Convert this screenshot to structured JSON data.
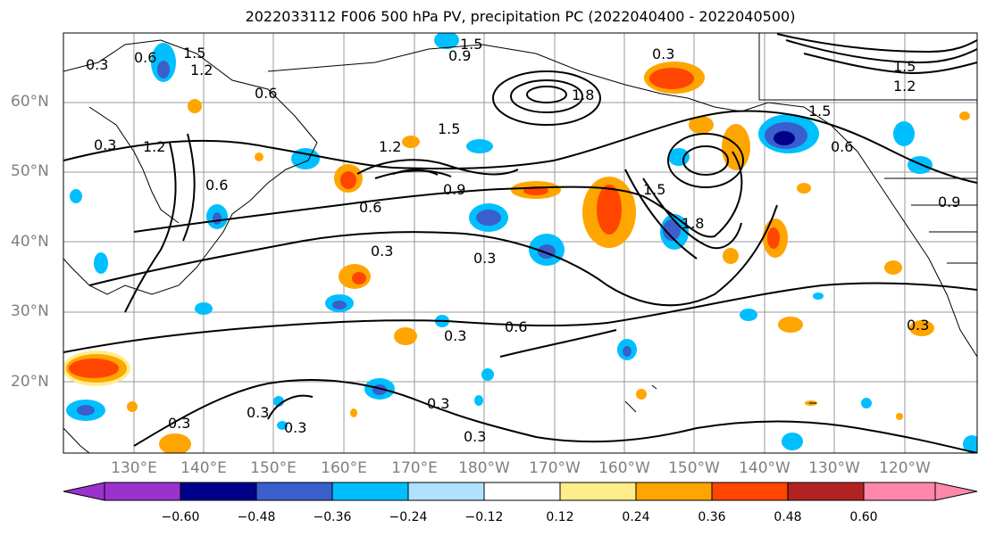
{
  "title": "2022033112 F006 500 hPa PV, precipitation PC (2022040400 - 2022040500)",
  "latitude_labels": [
    "60°N",
    "50°N",
    "40°N",
    "30°N",
    "20°N"
  ],
  "longitude_labels": [
    "130°E",
    "140°E",
    "150°E",
    "160°E",
    "170°E",
    "180°W",
    "170°W",
    "160°W",
    "150°W",
    "140°W",
    "130°W",
    "120°W"
  ],
  "contour_labels": [
    "0.3",
    "0.6",
    "0.9",
    "1.2",
    "1.5",
    "1.8"
  ],
  "colorbar": {
    "ticks": [
      "−0.60",
      "−0.48",
      "−0.36",
      "−0.24",
      "−0.12",
      "0.12",
      "0.24",
      "0.36",
      "0.48",
      "0.60"
    ],
    "colors": [
      "#9a32cd",
      "#00008b",
      "#3a5fcd",
      "#00bfff",
      "#b0e2ff",
      "#ffffff",
      "#ffec8b",
      "#ffa500",
      "#ff4500",
      "#b22222",
      "#ff88aa"
    ]
  }
}
